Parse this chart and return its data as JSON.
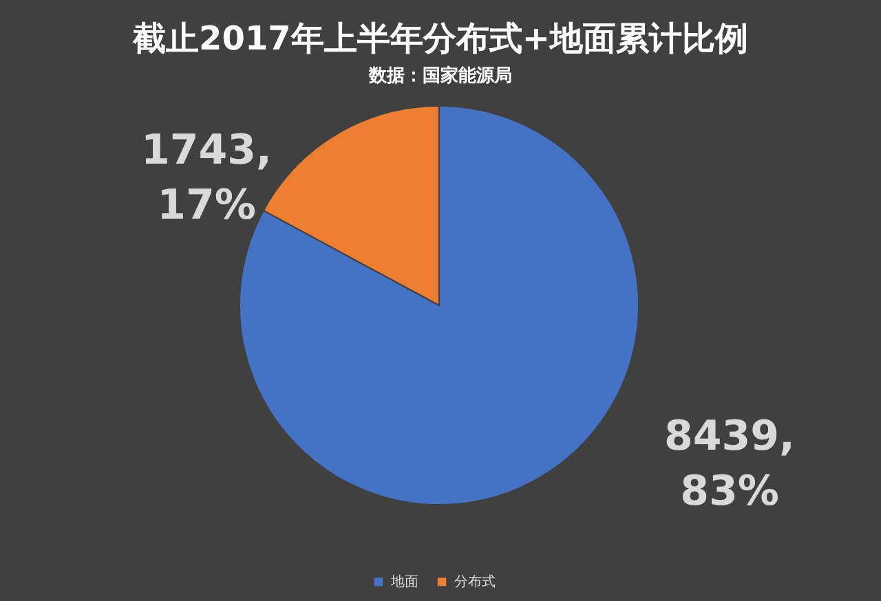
{
  "chart_data": {
    "type": "pie",
    "title": "截止2017年上半年分布式+地面累计比例",
    "subtitle": "数据：国家能源局",
    "categories": [
      "地面",
      "分布式"
    ],
    "values": [
      8439,
      1743
    ],
    "colors": [
      "#4472c4",
      "#ed7d31"
    ],
    "value_labels": [
      "8439,\n83%",
      "1743,\n17%"
    ],
    "legend": "bottom"
  }
}
